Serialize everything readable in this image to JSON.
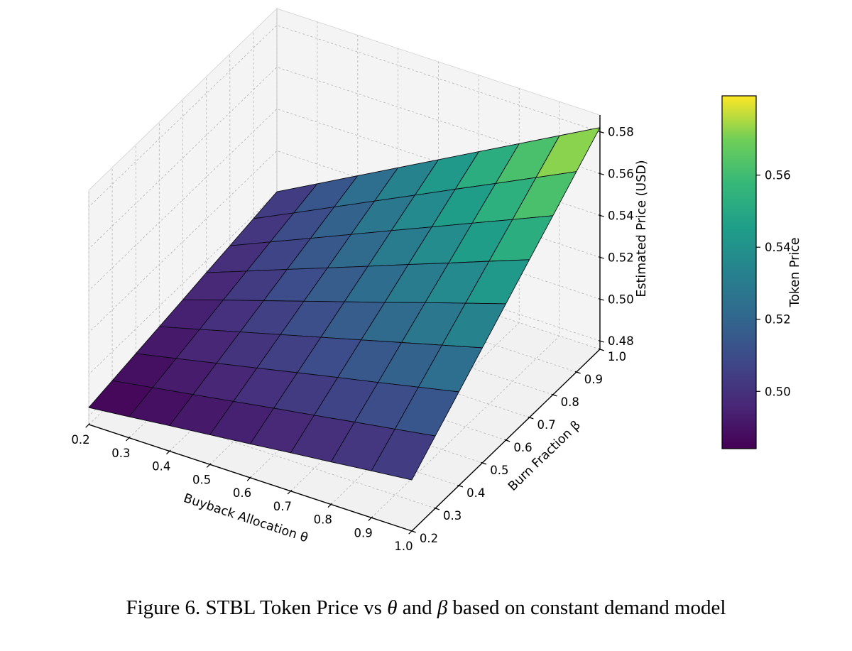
{
  "figure": {
    "caption": {
      "prefix": "Figure 6. STBL Token Price vs ",
      "theta": "θ",
      "mid": " and ",
      "beta": "β",
      "suffix": " based on constant demand model"
    }
  },
  "chart_data": {
    "type": "surface3d",
    "xlabel": "Buyback Allocation θ",
    "ylabel": "Burn Fraction β",
    "zlabel": "Estimated Price (USD)",
    "colorbar_label": "Token Price",
    "colormap": "viridis",
    "x": [
      0.2,
      0.3,
      0.4,
      0.5,
      0.6,
      0.7,
      0.8,
      0.9,
      1.0
    ],
    "y": [
      0.2,
      0.3,
      0.4,
      0.5,
      0.6,
      0.7,
      0.8,
      0.9,
      1.0
    ],
    "x_tick_labels": [
      "0.2",
      "0.3",
      "0.4",
      "0.5",
      "0.6",
      "0.7",
      "0.8",
      "0.9",
      "1.0"
    ],
    "y_tick_labels": [
      "0.2",
      "0.3",
      "0.4",
      "0.5",
      "0.6",
      "0.7",
      "0.8",
      "0.9",
      "1.0"
    ],
    "z_tick_values": [
      0.48,
      0.5,
      0.52,
      0.54,
      0.56,
      0.58
    ],
    "z_tick_labels": [
      "0.48",
      "0.50",
      "0.52",
      "0.54",
      "0.56",
      "0.58"
    ],
    "colorbar_tick_values": [
      0.5,
      0.52,
      0.54,
      0.56
    ],
    "colorbar_tick_labels": [
      "0.50",
      "0.52",
      "0.54",
      "0.56"
    ],
    "zlim": [
      0.476,
      0.588
    ],
    "z": [
      [
        0.4841,
        0.4861,
        0.4882,
        0.4902,
        0.4922,
        0.4943,
        0.4963,
        0.4984,
        0.5004
      ],
      [
        0.4861,
        0.4892,
        0.4922,
        0.4953,
        0.4984,
        0.5014,
        0.5045,
        0.5075,
        0.5106
      ],
      [
        0.4882,
        0.4922,
        0.4963,
        0.5004,
        0.5045,
        0.5086,
        0.5126,
        0.5167,
        0.5208
      ],
      [
        0.4902,
        0.4953,
        0.5004,
        0.5055,
        0.5106,
        0.5157,
        0.5208,
        0.5259,
        0.531
      ],
      [
        0.4922,
        0.4984,
        0.5045,
        0.5106,
        0.5167,
        0.5228,
        0.529,
        0.5351,
        0.5412
      ],
      [
        0.4943,
        0.5014,
        0.5086,
        0.5157,
        0.5228,
        0.53,
        0.5371,
        0.5443,
        0.5514
      ],
      [
        0.4963,
        0.5045,
        0.5126,
        0.5208,
        0.529,
        0.5371,
        0.5453,
        0.5534,
        0.5616
      ],
      [
        0.4984,
        0.5075,
        0.5167,
        0.5259,
        0.5351,
        0.5443,
        0.5534,
        0.5626,
        0.5718
      ],
      [
        0.5004,
        0.5106,
        0.5208,
        0.531,
        0.5412,
        0.5514,
        0.5616,
        0.5718,
        0.582
      ]
    ],
    "viridis_stops": [
      [
        0.0,
        "#440154"
      ],
      [
        0.125,
        "#482878"
      ],
      [
        0.25,
        "#3e4989"
      ],
      [
        0.375,
        "#31688e"
      ],
      [
        0.5,
        "#26828e"
      ],
      [
        0.625,
        "#1f9e89"
      ],
      [
        0.75,
        "#35b779"
      ],
      [
        0.875,
        "#6ece58"
      ],
      [
        1.0,
        "#fde725"
      ]
    ]
  }
}
